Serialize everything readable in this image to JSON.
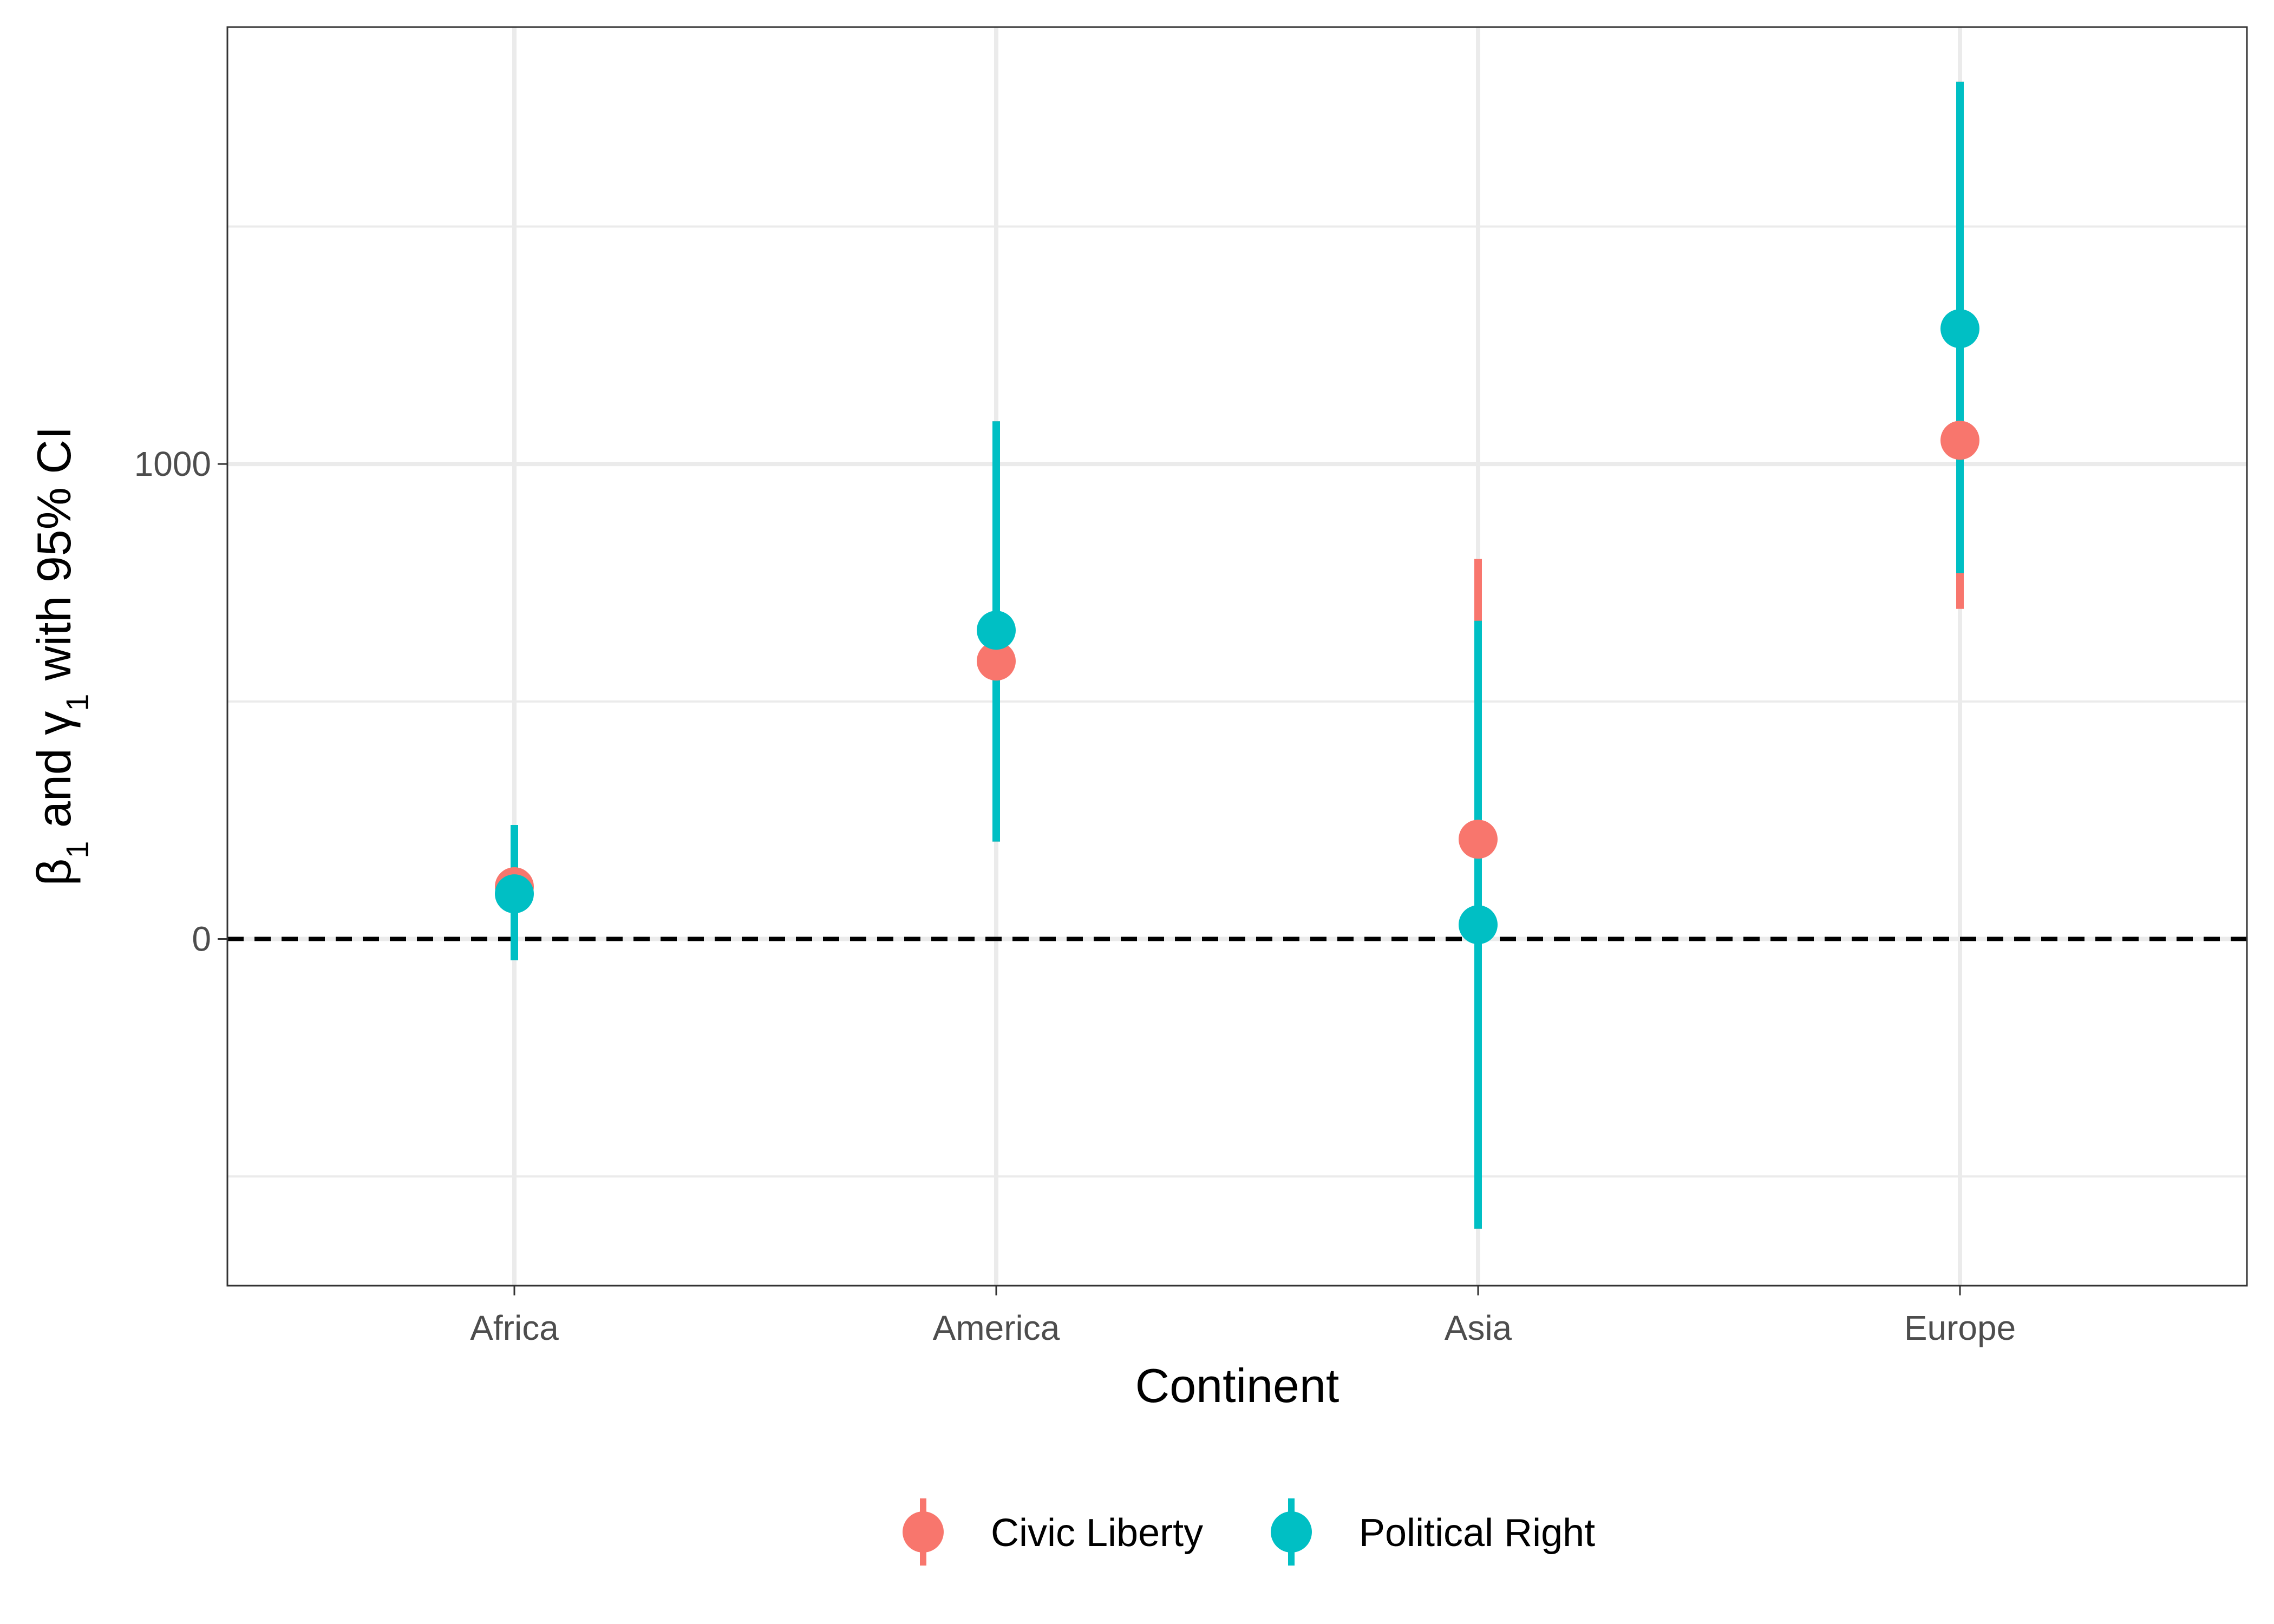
{
  "chart_data": {
    "type": "scatter",
    "categories": [
      "Africa",
      "America",
      "Asia",
      "Europe"
    ],
    "xlabel": "Continent",
    "ylabel": {
      "prefix": "β",
      "sub1": "1",
      "middle": " and γ",
      "sub2": "1",
      "suffix": " with 95% CI"
    },
    "ylim": [
      -730,
      1920
    ],
    "yticks": [
      0,
      1000
    ],
    "reference_line": 0,
    "grid": true,
    "legend_position": "bottom",
    "series": [
      {
        "name": "Civic Liberty",
        "color": "#F8766D",
        "estimates": [
          110,
          585,
          210,
          1050
        ],
        "lower": [
          -45,
          205,
          -610,
          695
        ],
        "upper": [
          240,
          1090,
          800,
          1805
        ]
      },
      {
        "name": "Political Right",
        "color": "#00BFC4",
        "estimates": [
          95,
          650,
          30,
          1285
        ],
        "lower": [
          -45,
          205,
          -610,
          770
        ],
        "upper": [
          240,
          1090,
          670,
          1805
        ]
      }
    ]
  }
}
